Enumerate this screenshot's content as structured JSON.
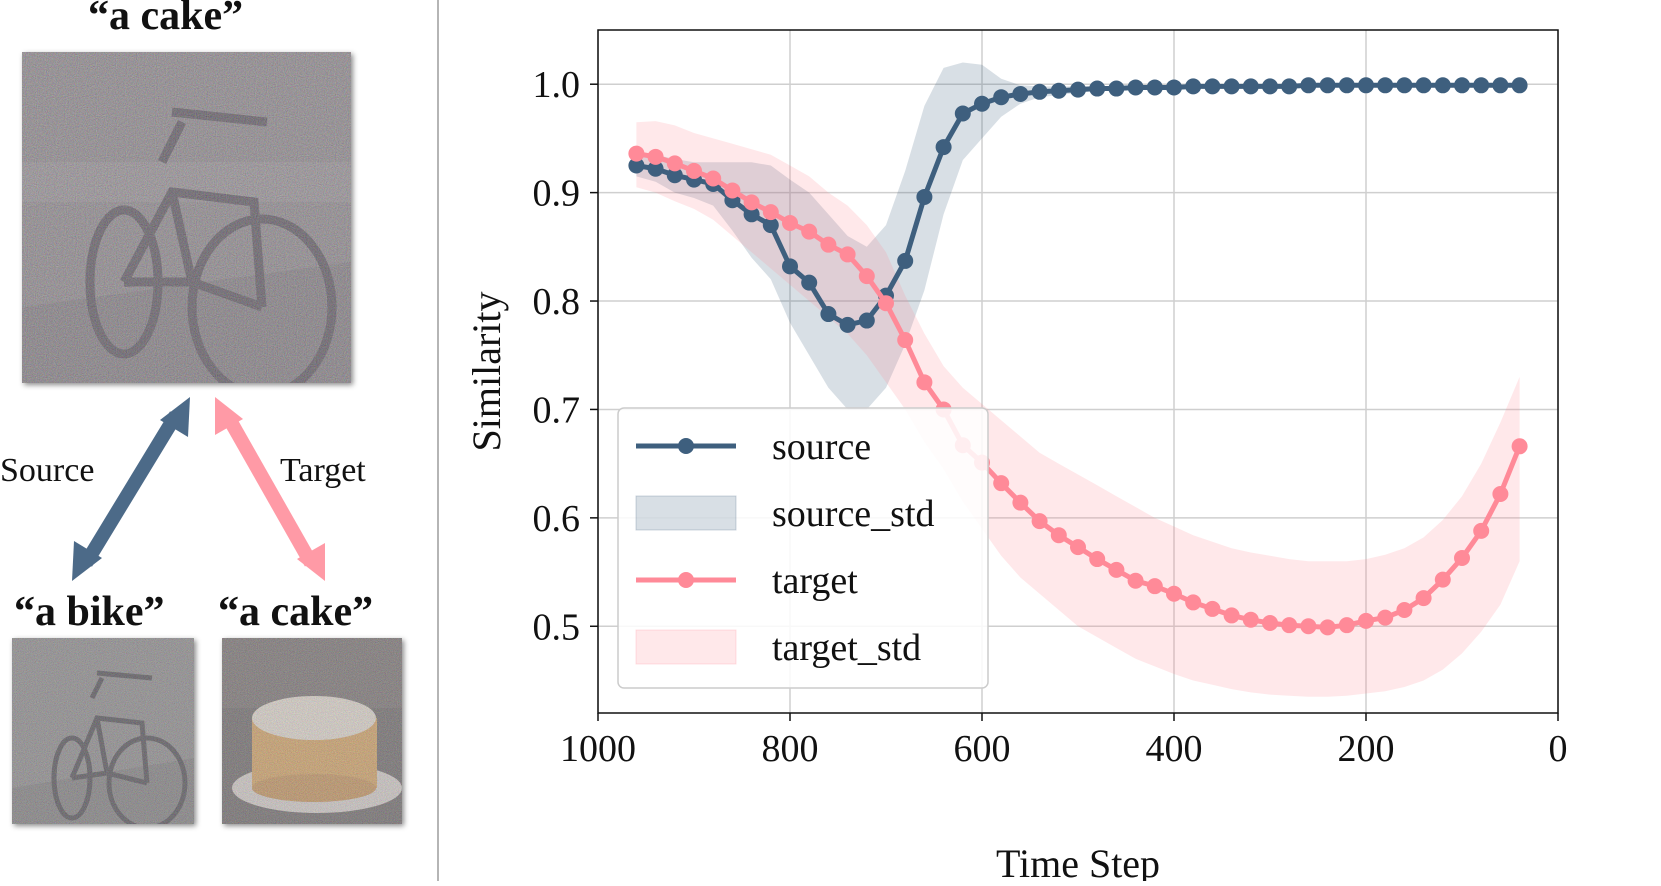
{
  "left_panel": {
    "top_caption": "“a cake”",
    "bottom_left_caption": "“a bike”",
    "bottom_right_caption": "“a cake”",
    "source_arrow_label": "Source",
    "target_arrow_label": "Target",
    "colors": {
      "source_arrow": "#4c6a88",
      "target_arrow": "#ff9aa6"
    }
  },
  "chart_data": {
    "type": "line",
    "xlabel": "Time Step",
    "ylabel": "Similarity",
    "xlim": [
      1000,
      0
    ],
    "ylim": [
      0.42,
      1.05
    ],
    "xticks": [
      1000,
      800,
      600,
      400,
      200,
      0
    ],
    "yticks": [
      0.5,
      0.6,
      0.7,
      0.8,
      0.9,
      1.0
    ],
    "xtick_labels": [
      "1000",
      "800",
      "600",
      "400",
      "200",
      "0"
    ],
    "ytick_labels": [
      "0.5",
      "0.6",
      "0.7",
      "0.8",
      "0.9",
      "1.0"
    ],
    "grid": true,
    "legend": "bottom-left",
    "x": [
      960,
      940,
      920,
      900,
      880,
      860,
      840,
      820,
      800,
      780,
      760,
      740,
      720,
      700,
      680,
      660,
      640,
      620,
      600,
      580,
      560,
      540,
      520,
      500,
      480,
      460,
      440,
      420,
      400,
      380,
      360,
      340,
      320,
      300,
      280,
      260,
      240,
      220,
      200,
      180,
      160,
      140,
      120,
      100,
      80,
      60,
      40
    ],
    "series": [
      {
        "name": "source",
        "color": "#3e5f7e",
        "values": [
          0.925,
          0.922,
          0.916,
          0.912,
          0.908,
          0.893,
          0.88,
          0.87,
          0.832,
          0.817,
          0.788,
          0.778,
          0.782,
          0.805,
          0.837,
          0.896,
          0.942,
          0.973,
          0.982,
          0.988,
          0.991,
          0.993,
          0.994,
          0.995,
          0.996,
          0.996,
          0.997,
          0.997,
          0.997,
          0.998,
          0.998,
          0.998,
          0.998,
          0.998,
          0.998,
          0.999,
          0.999,
          0.999,
          0.999,
          0.999,
          0.999,
          0.999,
          0.999,
          0.999,
          0.999,
          0.999,
          0.999
        ],
        "std_upper": [
          0.935,
          0.935,
          0.931,
          0.928,
          0.928,
          0.928,
          0.928,
          0.925,
          0.912,
          0.9,
          0.88,
          0.86,
          0.85,
          0.87,
          0.92,
          0.98,
          1.015,
          1.02,
          1.018,
          1.005,
          0.999,
          0.998,
          0.998,
          0.998,
          0.998,
          0.998,
          0.998,
          0.998,
          0.999,
          0.999,
          0.999,
          0.999,
          0.999,
          0.999,
          0.999,
          0.999,
          0.999,
          0.999,
          0.999,
          0.999,
          0.999,
          0.999,
          0.999,
          0.999,
          0.999,
          0.999,
          0.999
        ],
        "std_lower": [
          0.915,
          0.91,
          0.9,
          0.895,
          0.888,
          0.865,
          0.84,
          0.82,
          0.78,
          0.75,
          0.72,
          0.7,
          0.7,
          0.72,
          0.76,
          0.81,
          0.88,
          0.93,
          0.95,
          0.97,
          0.982,
          0.988,
          0.99,
          0.992,
          0.994,
          0.994,
          0.995,
          0.995,
          0.996,
          0.996,
          0.996,
          0.997,
          0.997,
          0.997,
          0.997,
          0.998,
          0.998,
          0.998,
          0.998,
          0.998,
          0.998,
          0.998,
          0.998,
          0.998,
          0.998,
          0.998,
          0.998
        ]
      },
      {
        "name": "target",
        "color": "#ff8a98",
        "values": [
          0.936,
          0.933,
          0.927,
          0.92,
          0.913,
          0.902,
          0.891,
          0.882,
          0.872,
          0.864,
          0.852,
          0.843,
          0.823,
          0.798,
          0.764,
          0.725,
          0.7,
          0.667,
          0.651,
          0.632,
          0.614,
          0.597,
          0.584,
          0.573,
          0.562,
          0.552,
          0.542,
          0.537,
          0.53,
          0.522,
          0.516,
          0.51,
          0.506,
          0.503,
          0.501,
          0.5,
          0.499,
          0.501,
          0.505,
          0.508,
          0.515,
          0.526,
          0.543,
          0.563,
          0.588,
          0.622,
          0.666
        ],
        "std_upper": [
          0.965,
          0.966,
          0.962,
          0.955,
          0.95,
          0.945,
          0.94,
          0.935,
          0.925,
          0.915,
          0.9,
          0.888,
          0.87,
          0.845,
          0.805,
          0.77,
          0.74,
          0.72,
          0.705,
          0.69,
          0.675,
          0.66,
          0.65,
          0.64,
          0.63,
          0.62,
          0.61,
          0.6,
          0.592,
          0.584,
          0.578,
          0.572,
          0.568,
          0.565,
          0.562,
          0.56,
          0.56,
          0.56,
          0.562,
          0.566,
          0.572,
          0.582,
          0.598,
          0.62,
          0.65,
          0.688,
          0.73
        ],
        "std_lower": [
          0.905,
          0.9,
          0.892,
          0.885,
          0.875,
          0.86,
          0.845,
          0.83,
          0.815,
          0.8,
          0.785,
          0.77,
          0.75,
          0.725,
          0.7,
          0.67,
          0.645,
          0.615,
          0.59,
          0.565,
          0.545,
          0.53,
          0.515,
          0.5,
          0.49,
          0.48,
          0.47,
          0.463,
          0.456,
          0.45,
          0.446,
          0.442,
          0.439,
          0.437,
          0.436,
          0.435,
          0.435,
          0.436,
          0.438,
          0.44,
          0.444,
          0.45,
          0.46,
          0.475,
          0.495,
          0.52,
          0.56
        ]
      }
    ],
    "legend_entries": [
      {
        "label": "source",
        "kind": "line",
        "color": "#3e5f7e"
      },
      {
        "label": "source_std",
        "kind": "band",
        "color": "#3e5f7e"
      },
      {
        "label": "target",
        "kind": "line",
        "color": "#ff8a98"
      },
      {
        "label": "target_std",
        "kind": "band",
        "color": "#ff8a98"
      }
    ]
  }
}
